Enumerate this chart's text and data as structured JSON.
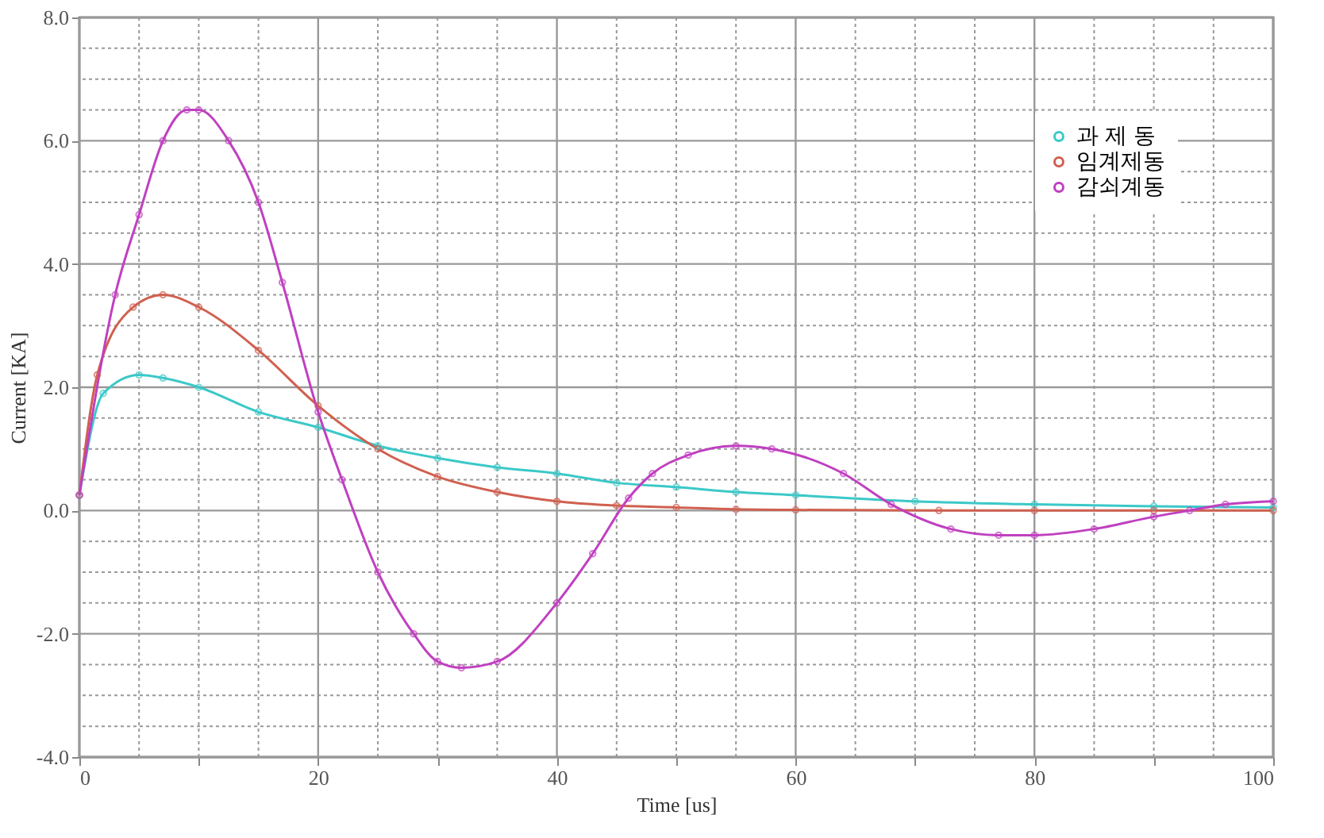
{
  "chart_data": {
    "type": "line",
    "xlabel": "Time [us]",
    "ylabel": "Current [KA]",
    "xlim": [
      0,
      100
    ],
    "ylim": [
      -4,
      8
    ],
    "xticks": [
      0,
      {
        "value": 5,
        "label": null
      },
      {
        "value": 10,
        "label": null
      },
      {
        "value": 15,
        "label": null
      },
      20,
      {
        "value": 25,
        "label": null
      },
      {
        "value": 30,
        "label": null
      },
      {
        "value": 35,
        "label": null
      },
      40,
      {
        "value": 45,
        "label": null
      },
      {
        "value": 50,
        "label": null
      },
      {
        "value": 55,
        "label": null
      },
      60,
      {
        "value": 65,
        "label": null
      },
      {
        "value": 70,
        "label": null
      },
      {
        "value": 75,
        "label": null
      },
      80,
      {
        "value": 85,
        "label": null
      },
      {
        "value": 90,
        "label": null
      },
      {
        "value": 95,
        "label": null
      },
      100
    ],
    "yticks": [
      {
        "value": -4,
        "label": "-4.0"
      },
      {
        "value": -3.5,
        "label": null
      },
      {
        "value": -3,
        "label": null
      },
      {
        "value": -2.5,
        "label": null
      },
      {
        "value": -2,
        "label": "-2.0"
      },
      {
        "value": -1.5,
        "label": null
      },
      {
        "value": -1,
        "label": null
      },
      {
        "value": -0.5,
        "label": null
      },
      {
        "value": 0,
        "label": "0.0"
      },
      {
        "value": 0.5,
        "label": null
      },
      {
        "value": 1,
        "label": null
      },
      {
        "value": 1.5,
        "label": null
      },
      {
        "value": 2,
        "label": "2.0"
      },
      {
        "value": 2.5,
        "label": null
      },
      {
        "value": 3,
        "label": null
      },
      {
        "value": 3.5,
        "label": null
      },
      {
        "value": 4,
        "label": "4.0"
      },
      {
        "value": 4.5,
        "label": null
      },
      {
        "value": 5,
        "label": null
      },
      {
        "value": 5.5,
        "label": null
      },
      {
        "value": 6,
        "label": "6.0"
      },
      {
        "value": 6.5,
        "label": null
      },
      {
        "value": 7,
        "label": null
      },
      {
        "value": 7.5,
        "label": null
      },
      {
        "value": 8,
        "label": "8.0"
      }
    ],
    "grid": true,
    "legend": "top right",
    "marker": "circle",
    "line_style": "solid",
    "series": [
      {
        "name": "과 제 동",
        "color": "#3cc8c8",
        "x": [
          0,
          2,
          5,
          7,
          10,
          15,
          20,
          25,
          30,
          35,
          40,
          45,
          50,
          55,
          60,
          70,
          80,
          90,
          100
        ],
        "values": [
          0.25,
          1.9,
          2.2,
          2.15,
          2.0,
          1.6,
          1.35,
          1.05,
          0.85,
          0.7,
          0.6,
          0.45,
          0.38,
          0.3,
          0.25,
          0.15,
          0.1,
          0.07,
          0.05
        ]
      },
      {
        "name": "임계제동",
        "color": "#d06050",
        "x": [
          0,
          1.5,
          4.5,
          7,
          10,
          15,
          20,
          25,
          30,
          35,
          40,
          45,
          50,
          55,
          60,
          72,
          80,
          90,
          100
        ],
        "values": [
          0.25,
          2.2,
          3.3,
          3.5,
          3.3,
          2.6,
          1.7,
          1.0,
          0.55,
          0.3,
          0.15,
          0.08,
          0.05,
          0.02,
          0.01,
          0.0,
          0.0,
          0.0,
          0.0
        ]
      },
      {
        "name": "감쇠계동",
        "color": "#c040c0",
        "x": [
          0,
          3,
          5,
          7,
          9,
          10,
          12.5,
          15,
          17,
          20,
          22,
          25,
          28,
          30,
          32,
          35,
          40,
          43,
          46,
          48,
          51,
          55,
          58,
          64,
          68,
          73,
          77,
          80,
          85,
          90,
          93,
          96,
          100
        ],
        "values": [
          0.25,
          3.5,
          4.8,
          6.0,
          6.5,
          6.5,
          6.0,
          5.0,
          3.7,
          1.6,
          0.5,
          -1.0,
          -2.0,
          -2.45,
          -2.55,
          -2.45,
          -1.5,
          -0.7,
          0.2,
          0.6,
          0.9,
          1.05,
          1.0,
          0.6,
          0.1,
          -0.3,
          -0.4,
          -0.4,
          -0.3,
          -0.1,
          0.0,
          0.1,
          0.15
        ]
      }
    ]
  }
}
